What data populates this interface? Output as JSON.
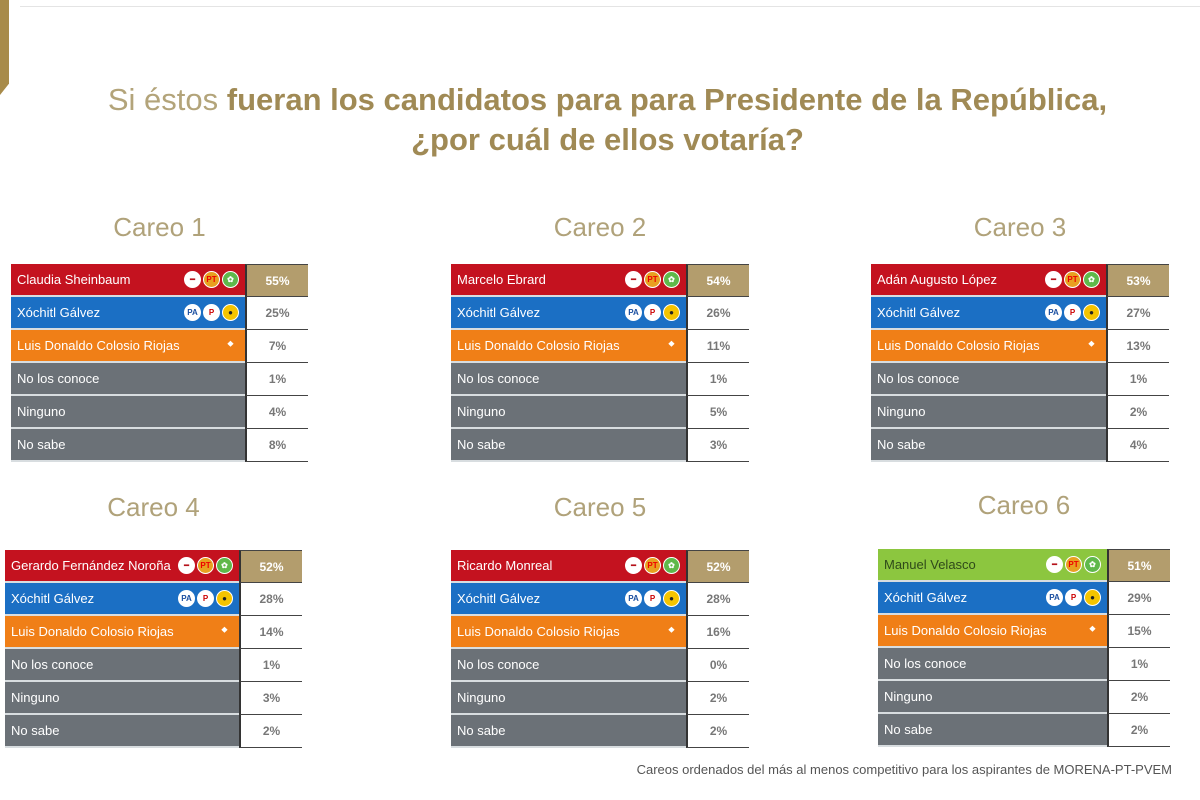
{
  "header": {
    "title_prefix": "Si éstos ",
    "title_bold": "fueran los candidatos para para Presidente de la República,",
    "title_line2": "¿por cuál de ellos votaría?"
  },
  "colors": {
    "morena_coalition": "#c4121f",
    "opposition": "#1b6fc4",
    "mc": "#f07f17",
    "other": "#6b7177",
    "pvem_candidate": "#8cc63f",
    "winner_pct": "#b39d6d",
    "title": "#b3a47a"
  },
  "careos": [
    {
      "title": "Careo 1",
      "rows": [
        {
          "name": "Claudia Sheinbaum",
          "pct": "55%",
          "type": "morena_coalition",
          "logos": [
            "morena-logo-icon",
            "pt-logo-icon",
            "pvem-logo-icon"
          ]
        },
        {
          "name": "Xóchitl Gálvez",
          "pct": "25%",
          "type": "opposition",
          "logos": [
            "pan-logo-icon",
            "pri-logo-icon",
            "prd-logo-icon"
          ]
        },
        {
          "name": "Luis Donaldo Colosio Riojas",
          "pct": "7%",
          "type": "mc",
          "logos": [
            "mc-logo-icon"
          ]
        },
        {
          "name": "No los conoce",
          "pct": "1%",
          "type": "other",
          "logos": []
        },
        {
          "name": "Ninguno",
          "pct": "4%",
          "type": "other",
          "logos": []
        },
        {
          "name": "No sabe",
          "pct": "8%",
          "type": "other",
          "logos": []
        }
      ]
    },
    {
      "title": "Careo 2",
      "rows": [
        {
          "name": "Marcelo Ebrard",
          "pct": "54%",
          "type": "morena_coalition",
          "logos": [
            "morena-logo-icon",
            "pt-logo-icon",
            "pvem-logo-icon"
          ]
        },
        {
          "name": "Xóchitl Gálvez",
          "pct": "26%",
          "type": "opposition",
          "logos": [
            "pan-logo-icon",
            "pri-logo-icon",
            "prd-logo-icon"
          ]
        },
        {
          "name": "Luis Donaldo Colosio Riojas",
          "pct": "11%",
          "type": "mc",
          "logos": [
            "mc-logo-icon"
          ]
        },
        {
          "name": "No los conoce",
          "pct": "1%",
          "type": "other",
          "logos": []
        },
        {
          "name": "Ninguno",
          "pct": "5%",
          "type": "other",
          "logos": []
        },
        {
          "name": "No sabe",
          "pct": "3%",
          "type": "other",
          "logos": []
        }
      ]
    },
    {
      "title": "Careo 3",
      "rows": [
        {
          "name": "Adán Augusto López",
          "pct": "53%",
          "type": "morena_coalition",
          "logos": [
            "morena-logo-icon",
            "pt-logo-icon",
            "pvem-logo-icon"
          ]
        },
        {
          "name": "Xóchitl Gálvez",
          "pct": "27%",
          "type": "opposition",
          "logos": [
            "pan-logo-icon",
            "pri-logo-icon",
            "prd-logo-icon"
          ]
        },
        {
          "name": "Luis Donaldo Colosio Riojas",
          "pct": "13%",
          "type": "mc",
          "logos": [
            "mc-logo-icon"
          ]
        },
        {
          "name": "No los conoce",
          "pct": "1%",
          "type": "other",
          "logos": []
        },
        {
          "name": "Ninguno",
          "pct": "2%",
          "type": "other",
          "logos": []
        },
        {
          "name": "No sabe",
          "pct": "4%",
          "type": "other",
          "logos": []
        }
      ]
    },
    {
      "title": "Careo 4",
      "rows": [
        {
          "name": "Gerardo Fernández Noroña",
          "pct": "52%",
          "type": "morena_coalition",
          "logos": [
            "morena-logo-icon",
            "pt-logo-icon",
            "pvem-logo-icon"
          ]
        },
        {
          "name": "Xóchitl Gálvez",
          "pct": "28%",
          "type": "opposition",
          "logos": [
            "pan-logo-icon",
            "pri-logo-icon",
            "prd-logo-icon"
          ]
        },
        {
          "name": "Luis Donaldo Colosio Riojas",
          "pct": "14%",
          "type": "mc",
          "logos": [
            "mc-logo-icon"
          ]
        },
        {
          "name": "No los conoce",
          "pct": "1%",
          "type": "other",
          "logos": []
        },
        {
          "name": "Ninguno",
          "pct": "3%",
          "type": "other",
          "logos": []
        },
        {
          "name": "No sabe",
          "pct": "2%",
          "type": "other",
          "logos": []
        }
      ]
    },
    {
      "title": "Careo 5",
      "rows": [
        {
          "name": "Ricardo Monreal",
          "pct": "52%",
          "type": "morena_coalition",
          "logos": [
            "morena-logo-icon",
            "pt-logo-icon",
            "pvem-logo-icon"
          ]
        },
        {
          "name": "Xóchitl Gálvez",
          "pct": "28%",
          "type": "opposition",
          "logos": [
            "pan-logo-icon",
            "pri-logo-icon",
            "prd-logo-icon"
          ]
        },
        {
          "name": "Luis Donaldo Colosio Riojas",
          "pct": "16%",
          "type": "mc",
          "logos": [
            "mc-logo-icon"
          ]
        },
        {
          "name": "No los conoce",
          "pct": "0%",
          "type": "other",
          "logos": []
        },
        {
          "name": "Ninguno",
          "pct": "2%",
          "type": "other",
          "logos": []
        },
        {
          "name": "No sabe",
          "pct": "2%",
          "type": "other",
          "logos": []
        }
      ]
    },
    {
      "title": "Careo 6",
      "rows": [
        {
          "name": "Manuel Velasco",
          "pct": "51%",
          "type": "pvem_candidate",
          "logos": [
            "morena-logo-icon",
            "pt-logo-icon",
            "pvem-logo-icon"
          ]
        },
        {
          "name": "Xóchitl Gálvez",
          "pct": "29%",
          "type": "opposition",
          "logos": [
            "pan-logo-icon",
            "pri-logo-icon",
            "prd-logo-icon"
          ]
        },
        {
          "name": "Luis Donaldo Colosio Riojas",
          "pct": "15%",
          "type": "mc",
          "logos": [
            "mc-logo-icon"
          ]
        },
        {
          "name": "No los conoce",
          "pct": "1%",
          "type": "other",
          "logos": []
        },
        {
          "name": "Ninguno",
          "pct": "2%",
          "type": "other",
          "logos": []
        },
        {
          "name": "No sabe",
          "pct": "2%",
          "type": "other",
          "logos": []
        }
      ]
    }
  ],
  "footnote": "Careos ordenados del más al menos competitivo para los aspirantes de MORENA-PT-PVEM"
}
